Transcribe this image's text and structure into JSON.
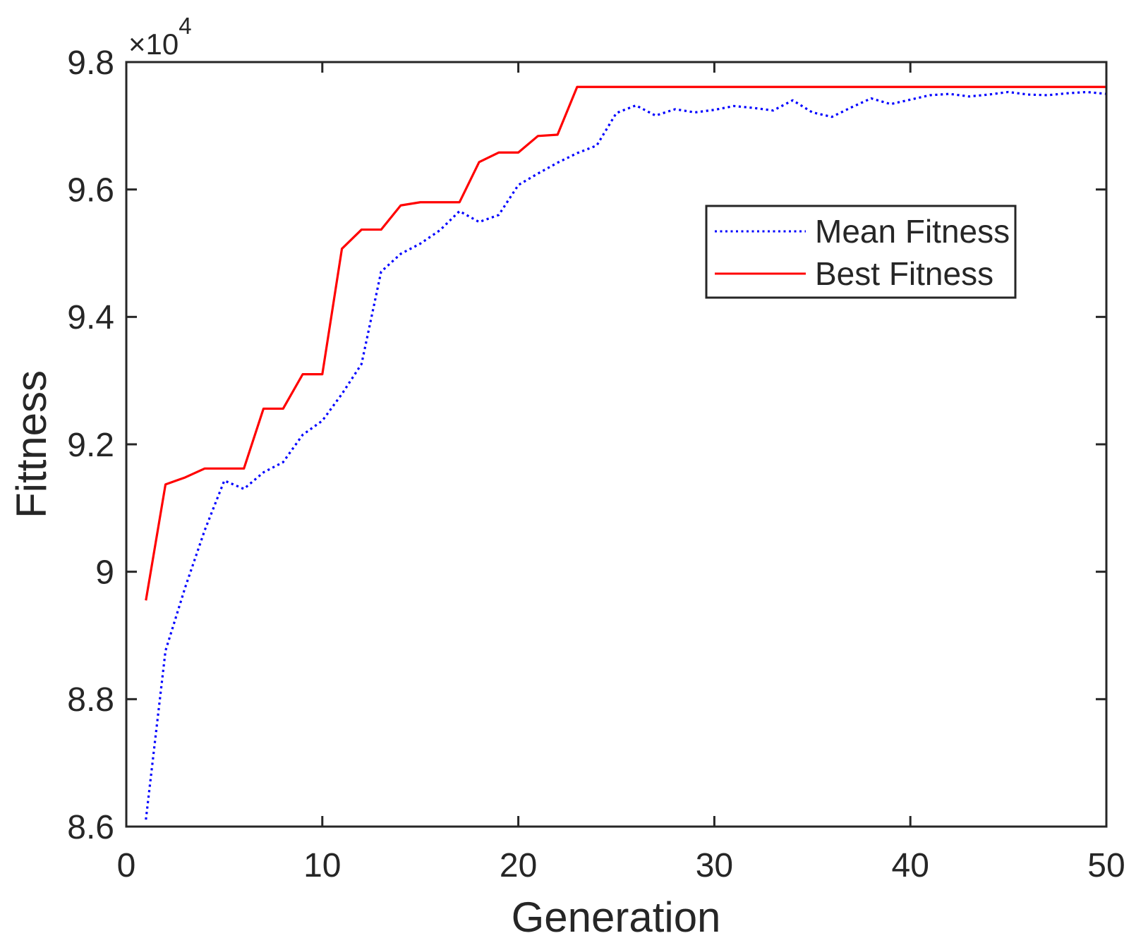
{
  "chart_data": {
    "type": "line",
    "xlabel": "Generation",
    "ylabel": "Fittness",
    "y_multiplier_base": "×10",
    "y_multiplier_exp": "4",
    "xlim": [
      0,
      50
    ],
    "ylim": [
      86000,
      98000
    ],
    "x_ticks": [
      0,
      10,
      20,
      30,
      40,
      50
    ],
    "x_tick_labels": [
      "0",
      "10",
      "20",
      "30",
      "40",
      "50"
    ],
    "y_ticks": [
      86000,
      88000,
      90000,
      92000,
      94000,
      96000,
      98000
    ],
    "y_tick_labels": [
      "8.6",
      "8.8",
      "9",
      "9.2",
      "9.4",
      "9.6",
      "9.8"
    ],
    "grid": false,
    "legend_position": "upper-right-inside",
    "axis_color": "#262626",
    "x": [
      1,
      2,
      3,
      4,
      5,
      6,
      7,
      8,
      9,
      10,
      11,
      12,
      13,
      14,
      15,
      16,
      17,
      18,
      19,
      20,
      21,
      22,
      23,
      24,
      25,
      26,
      27,
      28,
      29,
      30,
      31,
      32,
      33,
      34,
      35,
      36,
      37,
      38,
      39,
      40,
      41,
      42,
      43,
      44,
      45,
      46,
      47,
      48,
      49,
      50
    ],
    "series": [
      {
        "name": "Mean Fitness",
        "color": "#0000ff",
        "style": "dotted",
        "values": [
          86110,
          88760,
          89750,
          90650,
          91430,
          91300,
          91560,
          91720,
          92150,
          92370,
          92790,
          93260,
          94710,
          94990,
          95150,
          95360,
          95660,
          95490,
          95600,
          96070,
          96250,
          96420,
          96570,
          96690,
          97200,
          97320,
          97160,
          97260,
          97210,
          97250,
          97310,
          97280,
          97240,
          97400,
          97210,
          97140,
          97290,
          97430,
          97340,
          97410,
          97480,
          97500,
          97460,
          97490,
          97530,
          97490,
          97480,
          97510,
          97530,
          97500
        ]
      },
      {
        "name": "Best Fitness",
        "color": "#ff0000",
        "style": "solid",
        "values": [
          89550,
          91370,
          91480,
          91620,
          91620,
          91620,
          92560,
          92560,
          93100,
          93100,
          95070,
          95370,
          95370,
          95750,
          95800,
          95800,
          95800,
          96430,
          96580,
          96580,
          96840,
          96860,
          97610,
          97610,
          97610,
          97610,
          97610,
          97610,
          97610,
          97610,
          97610,
          97610,
          97610,
          97610,
          97610,
          97610,
          97610,
          97610,
          97610,
          97610,
          97610,
          97610,
          97610,
          97610,
          97610,
          97610,
          97610,
          97610,
          97610,
          97610
        ]
      }
    ]
  }
}
